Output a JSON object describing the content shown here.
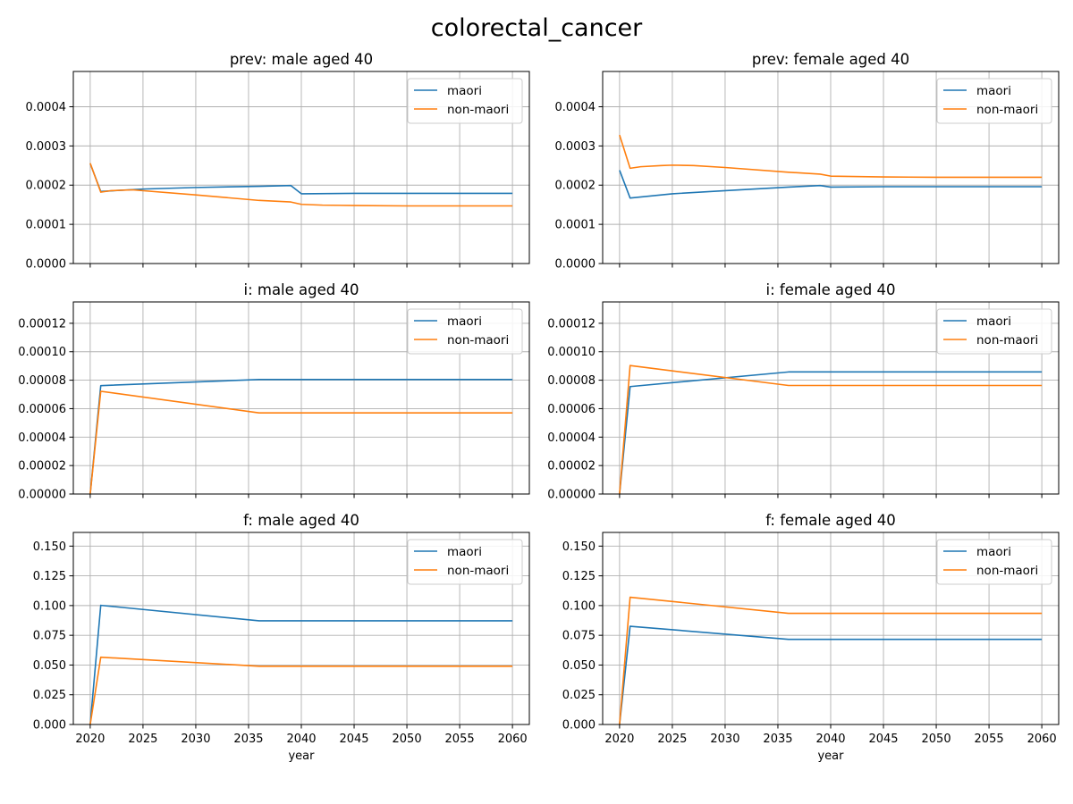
{
  "suptitle": "colorectal_cancer",
  "colors": {
    "maori": "#1f77b4",
    "non_maori": "#ff7f0e"
  },
  "chart_data": [
    {
      "type": "line",
      "title": "prev: male aged 40",
      "xlabel": "",
      "xlim": [
        2018.4,
        2061.6
      ],
      "ylim": [
        0,
        0.00049
      ],
      "xticks": [
        2020,
        2025,
        2030,
        2035,
        2040,
        2045,
        2050,
        2055,
        2060
      ],
      "xtick_labels": [],
      "yticks": [
        0,
        0.0001,
        0.0002,
        0.0003,
        0.0004
      ],
      "ytick_labels": [
        "0.0000",
        "0.0001",
        "0.0002",
        "0.0003",
        "0.0004"
      ],
      "grid": true,
      "legend": "upper right",
      "series": [
        {
          "name": "maori",
          "x": [
            2020,
            2021,
            2025,
            2030,
            2036,
            2039,
            2040,
            2045,
            2050,
            2055,
            2060
          ],
          "y": [
            0.000255,
            0.000184,
            0.00019,
            0.000194,
            0.000197,
            0.000199,
            0.000178,
            0.000179,
            0.000179,
            0.000179,
            0.000179
          ]
        },
        {
          "name": "non-maori",
          "x": [
            2020,
            2021,
            2022,
            2024,
            2030,
            2036,
            2039,
            2040,
            2042,
            2045,
            2050,
            2060
          ],
          "y": [
            0.000256,
            0.000182,
            0.000186,
            0.000188,
            0.000175,
            0.000161,
            0.000157,
            0.000151,
            0.000149,
            0.000148,
            0.000147,
            0.000147
          ]
        }
      ]
    },
    {
      "type": "line",
      "title": "prev: female aged 40",
      "xlabel": "",
      "xlim": [
        2018.4,
        2061.6
      ],
      "ylim": [
        0,
        0.00049
      ],
      "xticks": [
        2020,
        2025,
        2030,
        2035,
        2040,
        2045,
        2050,
        2055,
        2060
      ],
      "xtick_labels": [],
      "yticks": [
        0,
        0.0001,
        0.0002,
        0.0003,
        0.0004
      ],
      "ytick_labels": [
        "0.0000",
        "0.0001",
        "0.0002",
        "0.0003",
        "0.0004"
      ],
      "grid": true,
      "legend": "upper right",
      "series": [
        {
          "name": "maori",
          "x": [
            2020,
            2021,
            2025,
            2030,
            2036,
            2039,
            2040,
            2045,
            2050,
            2055,
            2060
          ],
          "y": [
            0.000238,
            0.000167,
            0.000178,
            0.000186,
            0.000195,
            0.000199,
            0.000195,
            0.000196,
            0.000196,
            0.000196,
            0.000196
          ]
        },
        {
          "name": "non-maori",
          "x": [
            2020,
            2021,
            2022,
            2024,
            2025,
            2027,
            2030,
            2036,
            2039,
            2040,
            2045,
            2050,
            2060
          ],
          "y": [
            0.000328,
            0.000243,
            0.000247,
            0.00025,
            0.000251,
            0.00025,
            0.000245,
            0.000233,
            0.000228,
            0.000223,
            0.000221,
            0.00022,
            0.00022
          ]
        }
      ]
    },
    {
      "type": "line",
      "title": "i: male aged 40",
      "xlabel": "",
      "xlim": [
        2018.4,
        2061.6
      ],
      "ylim": [
        0,
        0.000135
      ],
      "xticks": [
        2020,
        2025,
        2030,
        2035,
        2040,
        2045,
        2050,
        2055,
        2060
      ],
      "xtick_labels": [],
      "yticks": [
        0,
        2e-05,
        4e-05,
        6e-05,
        8e-05,
        0.0001,
        0.00012
      ],
      "ytick_labels": [
        "0.00000",
        "0.00002",
        "0.00004",
        "0.00006",
        "0.00008",
        "0.00010",
        "0.00012"
      ],
      "grid": true,
      "legend": "upper right",
      "series": [
        {
          "name": "maori",
          "x": [
            2020,
            2021,
            2036,
            2060
          ],
          "y": [
            0,
            7.62e-05,
            8.05e-05,
            8.05e-05
          ]
        },
        {
          "name": "non-maori",
          "x": [
            2020,
            2021,
            2036,
            2060
          ],
          "y": [
            0,
            7.22e-05,
            5.7e-05,
            5.7e-05
          ]
        }
      ]
    },
    {
      "type": "line",
      "title": "i: female aged 40",
      "xlabel": "",
      "xlim": [
        2018.4,
        2061.6
      ],
      "ylim": [
        0,
        0.000135
      ],
      "xticks": [
        2020,
        2025,
        2030,
        2035,
        2040,
        2045,
        2050,
        2055,
        2060
      ],
      "xtick_labels": [],
      "yticks": [
        0,
        2e-05,
        4e-05,
        6e-05,
        8e-05,
        0.0001,
        0.00012
      ],
      "ytick_labels": [
        "0.00000",
        "0.00002",
        "0.00004",
        "0.00006",
        "0.00008",
        "0.00010",
        "0.00012"
      ],
      "grid": true,
      "legend": "upper right",
      "series": [
        {
          "name": "maori",
          "x": [
            2020,
            2021,
            2036,
            2060
          ],
          "y": [
            0,
            7.55e-05,
            8.58e-05,
            8.58e-05
          ]
        },
        {
          "name": "non-maori",
          "x": [
            2020,
            2021,
            2036,
            2060
          ],
          "y": [
            0,
            9.03e-05,
            7.63e-05,
            7.63e-05
          ]
        }
      ]
    },
    {
      "type": "line",
      "title": "f: male aged 40",
      "xlabel": "year",
      "xlim": [
        2018.4,
        2061.6
      ],
      "ylim": [
        0,
        0.1615
      ],
      "xticks": [
        2020,
        2025,
        2030,
        2035,
        2040,
        2045,
        2050,
        2055,
        2060
      ],
      "xtick_labels": [
        "2020",
        "2025",
        "2030",
        "2035",
        "2040",
        "2045",
        "2050",
        "2055",
        "2060"
      ],
      "yticks": [
        0,
        0.025,
        0.05,
        0.075,
        0.1,
        0.125,
        0.15
      ],
      "ytick_labels": [
        "0.000",
        "0.025",
        "0.050",
        "0.075",
        "0.100",
        "0.125",
        "0.150"
      ],
      "grid": true,
      "legend": "upper right",
      "series": [
        {
          "name": "maori",
          "x": [
            2020,
            2021,
            2036,
            2060
          ],
          "y": [
            0,
            0.1002,
            0.0872,
            0.0872
          ]
        },
        {
          "name": "non-maori",
          "x": [
            2020,
            2021,
            2036,
            2060
          ],
          "y": [
            0,
            0.0566,
            0.049,
            0.049
          ]
        }
      ]
    },
    {
      "type": "line",
      "title": "f: female aged 40",
      "xlabel": "year",
      "xlim": [
        2018.4,
        2061.6
      ],
      "ylim": [
        0,
        0.1615
      ],
      "xticks": [
        2020,
        2025,
        2030,
        2035,
        2040,
        2045,
        2050,
        2055,
        2060
      ],
      "xtick_labels": [
        "2020",
        "2025",
        "2030",
        "2035",
        "2040",
        "2045",
        "2050",
        "2055",
        "2060"
      ],
      "yticks": [
        0,
        0.025,
        0.05,
        0.075,
        0.1,
        0.125,
        0.15
      ],
      "ytick_labels": [
        "0.000",
        "0.025",
        "0.050",
        "0.075",
        "0.100",
        "0.125",
        "0.150"
      ],
      "grid": true,
      "legend": "upper right",
      "series": [
        {
          "name": "maori",
          "x": [
            2020,
            2021,
            2036,
            2060
          ],
          "y": [
            0,
            0.0826,
            0.0716,
            0.0716
          ]
        },
        {
          "name": "non-maori",
          "x": [
            2020,
            2021,
            2036,
            2060
          ],
          "y": [
            0,
            0.107,
            0.0935,
            0.0935
          ]
        }
      ]
    }
  ]
}
